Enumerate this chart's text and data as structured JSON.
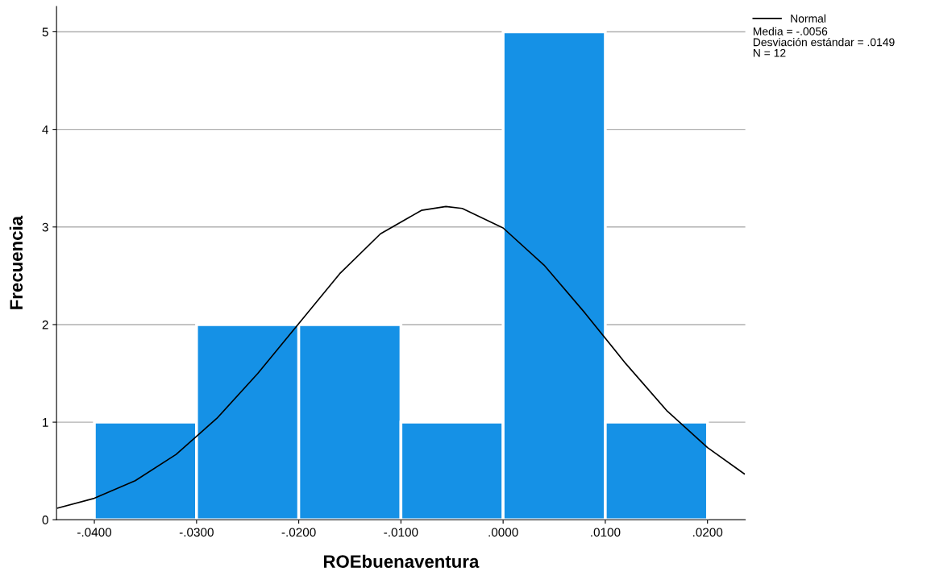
{
  "chart_data": {
    "type": "histogram",
    "xlabel": "ROEbuenaventura",
    "ylabel": "Frecuencia",
    "bins": [
      -0.04,
      -0.03,
      -0.02,
      -0.01,
      0.0,
      0.01,
      0.02
    ],
    "values": [
      1,
      2,
      2,
      1,
      5,
      1
    ],
    "color": "#1591e6",
    "series": [
      {
        "type": "line",
        "name": "Normal",
        "color": "#000000",
        "x": [
          -0.0436,
          -0.04,
          -0.036,
          -0.032,
          -0.028,
          -0.024,
          -0.02,
          -0.016,
          -0.012,
          -0.008,
          -0.0056,
          -0.004,
          0.0,
          0.004,
          0.008,
          0.012,
          0.016,
          0.02,
          0.0236
        ],
        "values": [
          0.12,
          0.22,
          0.4,
          0.67,
          1.04,
          1.5,
          2.01,
          2.52,
          2.93,
          3.17,
          3.21,
          3.19,
          2.99,
          2.61,
          2.12,
          1.6,
          1.12,
          0.74,
          0.47
        ]
      }
    ],
    "xlim": [
      -0.0437,
      0.0237
    ],
    "xticks": [
      {
        "value": -0.04,
        "label": "-.0400"
      },
      {
        "value": -0.03,
        "label": "-.0300"
      },
      {
        "value": -0.02,
        "label": "-.0200"
      },
      {
        "value": -0.01,
        "label": "-.0100"
      },
      {
        "value": 0.0,
        "label": ".0000"
      },
      {
        "value": 0.01,
        "label": ".0100"
      },
      {
        "value": 0.02,
        "label": ".0200"
      }
    ],
    "ylim": [
      0,
      5.26
    ],
    "yticks": [
      0,
      1,
      2,
      3,
      4,
      5
    ],
    "grid": "y",
    "legend": "top right",
    "annotations": [
      "Media = -.0056",
      "Desviación estándar = .0149",
      "N = 12"
    ]
  }
}
